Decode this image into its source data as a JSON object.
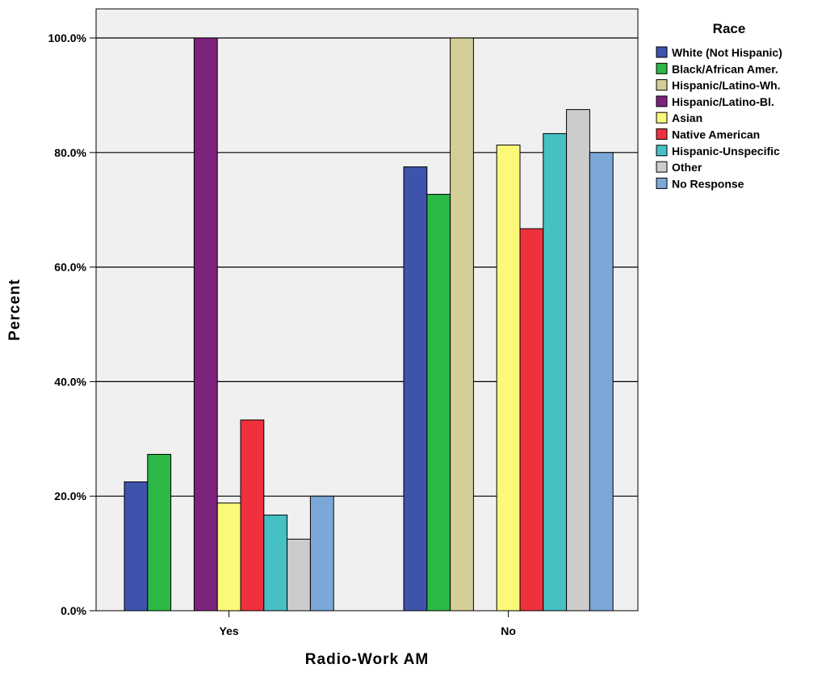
{
  "chart_data": {
    "type": "bar",
    "xlabel": "Radio-Work AM",
    "ylabel": "Percent",
    "ylim": [
      0,
      100
    ],
    "yticks": [
      0,
      20,
      40,
      60,
      80,
      100
    ],
    "ytick_labels": [
      "0.0%",
      "20.0%",
      "40.0%",
      "60.0%",
      "80.0%",
      "100.0%"
    ],
    "grid": true,
    "categories": [
      "Yes",
      "No"
    ],
    "legend": {
      "title": "Race",
      "placement": "right"
    },
    "series": [
      {
        "name": "White (Not Hispanic)",
        "color": "#3d53ac",
        "values": [
          22.5,
          77.5
        ]
      },
      {
        "name": "Black/African Amer.",
        "color": "#2cb846",
        "values": [
          27.3,
          72.7
        ]
      },
      {
        "name": "Hispanic/Latino-Wh.",
        "color": "#d4cf97",
        "values": [
          0,
          100
        ]
      },
      {
        "name": "Hispanic/Latino-Bl.",
        "color": "#7d227d",
        "values": [
          100,
          0
        ]
      },
      {
        "name": "Asian",
        "color": "#fbf97a",
        "values": [
          18.8,
          81.3
        ]
      },
      {
        "name": "Native American",
        "color": "#ee313d",
        "values": [
          33.3,
          66.7
        ]
      },
      {
        "name": "Hispanic-Unspecific",
        "color": "#47c0c4",
        "values": [
          16.7,
          83.3
        ]
      },
      {
        "name": "Other",
        "color": "#cccccc",
        "values": [
          12.5,
          87.5
        ]
      },
      {
        "name": "No Response",
        "color": "#7ba8d8",
        "values": [
          20,
          80
        ]
      }
    ]
  }
}
